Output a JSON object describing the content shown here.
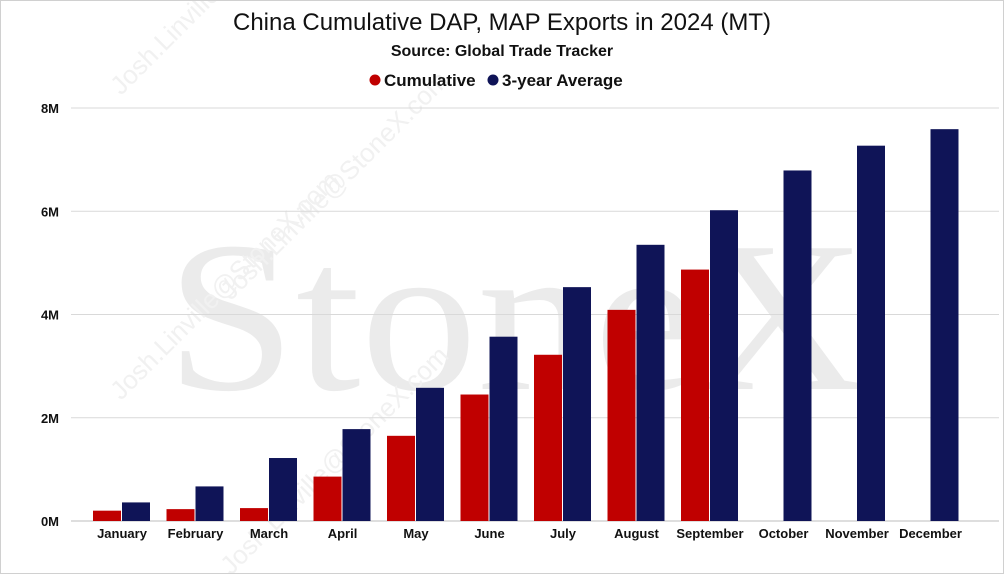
{
  "chart_data": {
    "type": "bar",
    "title": "China Cumulative DAP, MAP Exports in 2024 (MT)",
    "subtitle": "Source: Global Trade Tracker",
    "categories": [
      "January",
      "February",
      "March",
      "April",
      "May",
      "June",
      "July",
      "August",
      "September",
      "October",
      "November",
      "December"
    ],
    "series": [
      {
        "name": "Cumulative",
        "color": "#c00000",
        "values": [
          200000,
          230000,
          250000,
          860000,
          1650000,
          2450000,
          3220000,
          4090000,
          4870000,
          null,
          null,
          null
        ]
      },
      {
        "name": "3-year Average",
        "color": "#0f1457",
        "values": [
          360000,
          670000,
          1220000,
          1780000,
          2580000,
          3570000,
          4530000,
          5350000,
          6020000,
          6790000,
          7270000,
          7590000
        ]
      }
    ],
    "yticks": [
      0,
      2000000,
      4000000,
      6000000,
      8000000
    ],
    "ytick_labels": [
      "0M",
      "2M",
      "4M",
      "6M",
      "8M"
    ],
    "ylim": [
      0,
      8000000
    ],
    "grid": true,
    "legend_position": "top-center"
  },
  "watermark": {
    "brand": "StoneX",
    "email": "Josh.Linville@StoneX.com"
  }
}
